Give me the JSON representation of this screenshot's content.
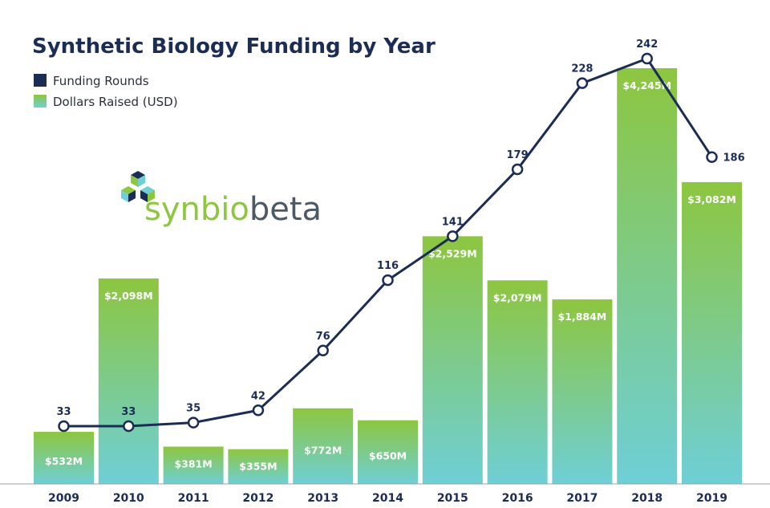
{
  "chart_data": {
    "type": "bar",
    "title": "Synthetic Biology Funding by Year",
    "categories": [
      "2009",
      "2010",
      "2011",
      "2012",
      "2013",
      "2014",
      "2015",
      "2016",
      "2017",
      "2018",
      "2019"
    ],
    "series": [
      {
        "name": "Dollars Raised (USD)",
        "type": "bar",
        "values": [
          532,
          2098,
          381,
          355,
          772,
          650,
          2529,
          2079,
          1884,
          4245,
          3082
        ],
        "labels": [
          "$532M",
          "$2,098M",
          "$381M",
          "$355M",
          "$772M",
          "$650M",
          "$2,529M",
          "$2,079M",
          "$1,884M",
          "$4,245M",
          "$3,082M"
        ],
        "color_top": "#8dc63f",
        "color_bottom": "#6ecfd6"
      },
      {
        "name": "Funding Rounds",
        "type": "line",
        "values": [
          33,
          33,
          35,
          42,
          76,
          116,
          141,
          179,
          228,
          242,
          186
        ],
        "color": "#1b2c55"
      }
    ],
    "legend": "top-left",
    "grid": false
  },
  "logo": {
    "part1": "synbio",
    "part2": "beta"
  },
  "colors": {
    "navy": "#1b2c55",
    "green": "#8dc63f",
    "teal": "#6ecfd6",
    "logo_green": "#8dc63f",
    "logo_gray": "#4d5a66"
  }
}
